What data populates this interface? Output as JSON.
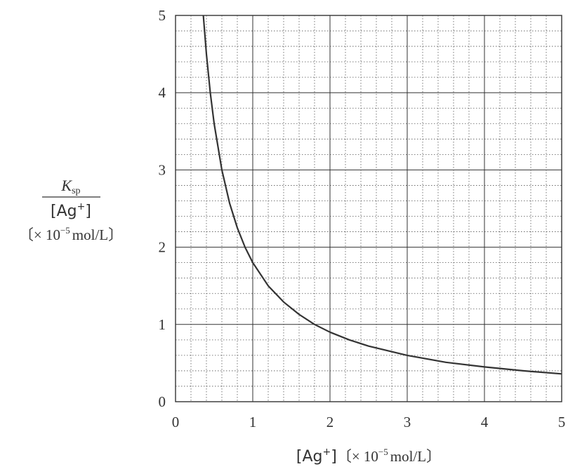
{
  "chart_data": {
    "type": "line",
    "xlabel": {
      "species": "Ag",
      "charge": "+",
      "unit_open": "〔× 10",
      "unit_exp": "−5",
      "unit_close": "mol/L〕"
    },
    "ylabel": {
      "numerator": "K",
      "numerator_sub": "sp",
      "denominator_species": "Ag",
      "denominator_charge": "+",
      "unit_open": "〔× 10",
      "unit_exp": "−5",
      "unit_close": "mol/L〕"
    },
    "xlim": [
      0,
      5
    ],
    "ylim": [
      0,
      5
    ],
    "x_ticks": [
      0,
      1,
      2,
      3,
      4,
      5
    ],
    "y_ticks": [
      0,
      1,
      2,
      3,
      4,
      5
    ],
    "x_tick_labels": [
      "0",
      "1",
      "2",
      "3",
      "4",
      "5"
    ],
    "y_tick_labels": [
      "0",
      "1",
      "2",
      "3",
      "4",
      "5"
    ],
    "grid": true,
    "minor_grid_step": 0.2,
    "series": [
      {
        "x": [
          0.36,
          0.4,
          0.45,
          0.5,
          0.6,
          0.7,
          0.8,
          0.9,
          1.0,
          1.2,
          1.4,
          1.6,
          1.8,
          2.0,
          2.25,
          2.5,
          3.0,
          3.5,
          4.0,
          4.5,
          5.0
        ],
        "y": [
          5.0,
          4.5,
          4.0,
          3.6,
          3.0,
          2.57,
          2.25,
          2.0,
          1.8,
          1.5,
          1.29,
          1.13,
          1.0,
          0.9,
          0.8,
          0.72,
          0.6,
          0.51,
          0.45,
          0.4,
          0.36
        ]
      }
    ]
  }
}
